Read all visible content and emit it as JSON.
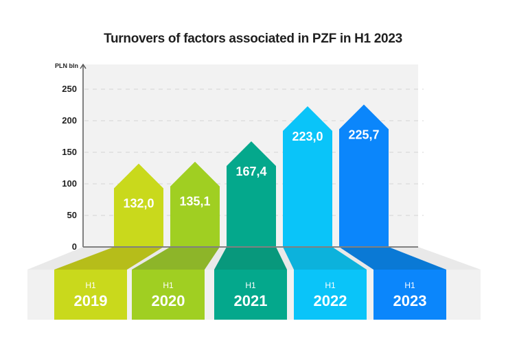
{
  "chart_data": {
    "type": "bar",
    "title": "Turnovers of factors associated in PZF in H1 2023",
    "xlabel": "",
    "ylabel": "PLN bln",
    "ylim": [
      0,
      270
    ],
    "yticks": [
      0,
      50,
      100,
      150,
      200,
      250
    ],
    "ytick_labels": [
      "0",
      "50",
      "100",
      "150",
      "200",
      "250"
    ],
    "grid": true,
    "categories": [
      {
        "period": "H1",
        "year": "2019"
      },
      {
        "period": "H1",
        "year": "2020"
      },
      {
        "period": "H1",
        "year": "2021"
      },
      {
        "period": "H1",
        "year": "2022"
      },
      {
        "period": "H1",
        "year": "2023"
      }
    ],
    "values": [
      132.0,
      135.1,
      167.4,
      223.0,
      225.7
    ],
    "value_labels": [
      "132,0",
      "135,1",
      "167,4",
      "223,0",
      "225,7"
    ],
    "colors": [
      "#c9d91c",
      "#a0cf22",
      "#04a88c",
      "#0ac4f9",
      "#0b86fb"
    ],
    "shadow_colors": [
      "#b6bd1a",
      "#8db529",
      "#08987c",
      "#0cb2dc",
      "#0a79d5"
    ]
  }
}
